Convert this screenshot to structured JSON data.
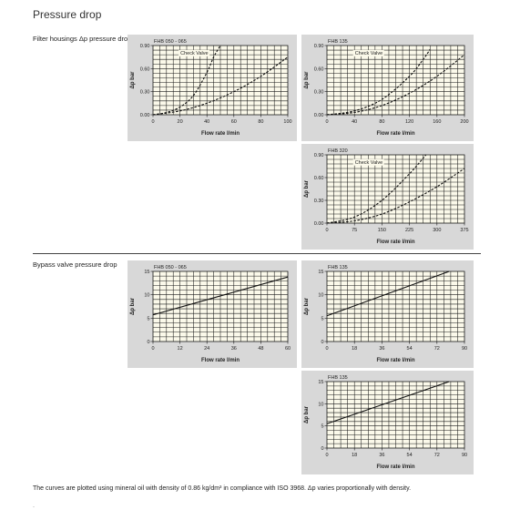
{
  "page": {
    "title": "Pressure drop",
    "sections": [
      {
        "label": "Filter housings Δp pressure drop"
      },
      {
        "label": "Bypass valve pressure drop"
      }
    ],
    "footnote": "The curves are plotted using mineral oil with density of 0.86 kg/dm³ in compliance with ISO 3968. Δp varies proportionally with density.",
    "corner_mark": "·"
  },
  "colors": {
    "panel": "#d8d8d8",
    "plot": "#fbf9ea",
    "grid": "#1a1a1a",
    "curve": "#111111"
  },
  "chart_data": [
    {
      "type": "line",
      "title": "FHB 050 - 065",
      "xlabel": "Flow rate l/min",
      "ylabel": "Δp bar",
      "xlim": [
        0,
        100
      ],
      "ylim": [
        0,
        0.9
      ],
      "xticks": [
        0,
        20,
        40,
        60,
        80,
        100
      ],
      "xtick_labels": [
        "0",
        "20",
        "40",
        "60",
        "80",
        "100"
      ],
      "yticks": [
        0,
        0.3,
        0.6,
        0.9
      ],
      "ytick_labels": [
        "0.00",
        "0.30",
        "0.60",
        "0.90"
      ],
      "grid": true,
      "annotation": "Check Valve",
      "series": [
        {
          "style": "dashed",
          "x": [
            0,
            10,
            20,
            30,
            40,
            45,
            50
          ],
          "y": [
            0,
            0.03,
            0.1,
            0.25,
            0.55,
            0.75,
            0.9
          ]
        },
        {
          "style": "dashed",
          "x": [
            0,
            20,
            40,
            60,
            80,
            100
          ],
          "y": [
            0,
            0.05,
            0.15,
            0.3,
            0.5,
            0.75
          ]
        }
      ]
    },
    {
      "type": "line",
      "title": "FHB 135",
      "xlabel": "Flow rate l/min",
      "ylabel": "Δp bar",
      "xlim": [
        0,
        200
      ],
      "ylim": [
        0,
        0.9
      ],
      "xticks": [
        0,
        40,
        80,
        120,
        160,
        200
      ],
      "xtick_labels": [
        "0",
        "40",
        "80",
        "120",
        "160",
        "200"
      ],
      "yticks": [
        0,
        0.3,
        0.6,
        0.9
      ],
      "ytick_labels": [
        "0.00",
        "0.30",
        "0.60",
        "0.90"
      ],
      "grid": true,
      "annotation": "Check Valve",
      "series": [
        {
          "style": "dashed",
          "x": [
            0,
            40,
            80,
            120,
            140,
            150
          ],
          "y": [
            0,
            0.05,
            0.2,
            0.5,
            0.72,
            0.85
          ]
        },
        {
          "style": "dashed",
          "x": [
            0,
            40,
            80,
            120,
            160,
            200
          ],
          "y": [
            0,
            0.03,
            0.12,
            0.28,
            0.5,
            0.78
          ]
        }
      ]
    },
    {
      "type": "line",
      "title": "FHB 320",
      "xlabel": "Flow rate l/min",
      "ylabel": "Δp bar",
      "xlim": [
        0,
        375
      ],
      "ylim": [
        0,
        0.9
      ],
      "xticks": [
        0,
        75,
        150,
        225,
        300,
        375
      ],
      "xtick_labels": [
        "0",
        "75",
        "150",
        "225",
        "300",
        "375"
      ],
      "yticks": [
        0,
        0.3,
        0.6,
        0.9
      ],
      "ytick_labels": [
        "0.00",
        "0.30",
        "0.60",
        "0.90"
      ],
      "grid": true,
      "annotation": "Check Valve",
      "series": [
        {
          "style": "dashed",
          "x": [
            0,
            75,
            150,
            225,
            270
          ],
          "y": [
            0,
            0.08,
            0.3,
            0.65,
            0.9
          ]
        },
        {
          "style": "dashed",
          "x": [
            0,
            75,
            150,
            225,
            300,
            375
          ],
          "y": [
            0,
            0.03,
            0.12,
            0.28,
            0.48,
            0.72
          ]
        }
      ]
    },
    {
      "type": "line",
      "title": "FHB 050 - 065",
      "xlabel": "Flow rate l/min",
      "ylabel": "Δp bar",
      "xlim": [
        0,
        60
      ],
      "ylim": [
        0,
        15
      ],
      "xticks": [
        0,
        12,
        24,
        36,
        48,
        60
      ],
      "xtick_labels": [
        "0",
        "12",
        "24",
        "36",
        "48",
        "60"
      ],
      "yticks": [
        0,
        5,
        10,
        15
      ],
      "ytick_labels": [
        "0",
        "5",
        "10",
        "15"
      ],
      "grid": true,
      "series": [
        {
          "style": "solid",
          "x": [
            0,
            60
          ],
          "y": [
            5.7,
            13.8
          ]
        }
      ]
    },
    {
      "type": "line",
      "title": "FHB 135",
      "xlabel": "Flow rate l/min",
      "ylabel": "Δp bar",
      "xlim": [
        0,
        90
      ],
      "ylim": [
        0,
        15
      ],
      "xticks": [
        0,
        18,
        36,
        54,
        72,
        90
      ],
      "xtick_labels": [
        "0",
        "18",
        "36",
        "54",
        "72",
        "90"
      ],
      "yticks": [
        0,
        5,
        10,
        15
      ],
      "ytick_labels": [
        "0",
        "5",
        "10",
        "15"
      ],
      "grid": true,
      "series": [
        {
          "style": "solid",
          "x": [
            0,
            80
          ],
          "y": [
            5.5,
            15
          ]
        }
      ]
    },
    {
      "type": "line",
      "title": "FHB 135",
      "xlabel": "Flow rate l/min",
      "ylabel": "Δp bar",
      "xlim": [
        0,
        90
      ],
      "ylim": [
        0,
        15
      ],
      "xticks": [
        0,
        18,
        36,
        54,
        72,
        90
      ],
      "xtick_labels": [
        "0",
        "18",
        "36",
        "54",
        "72",
        "90"
      ],
      "yticks": [
        0,
        5,
        10,
        15
      ],
      "ytick_labels": [
        "0",
        "5",
        "10",
        "15"
      ],
      "grid": true,
      "series": [
        {
          "style": "solid",
          "x": [
            0,
            80
          ],
          "y": [
            5.5,
            15
          ]
        }
      ]
    }
  ]
}
